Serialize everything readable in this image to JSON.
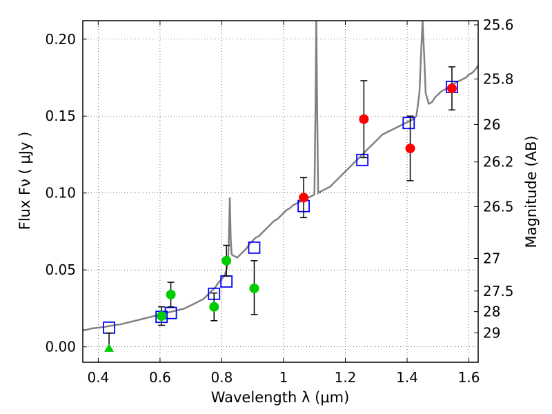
{
  "chart_data": {
    "type": "scatter",
    "xlabel": "Wavelength  λ (μm)",
    "ylabel": "Flux  Fν  ( μJy )",
    "ylabel_right": "Magnitude (AB)",
    "xlim": [
      0.35,
      1.63
    ],
    "ylim": [
      -0.01,
      0.212
    ],
    "grid": true,
    "x_ticks": [
      0.4,
      0.6,
      0.8,
      1.0,
      1.2,
      1.4,
      1.6
    ],
    "x_tick_labels": [
      "0.4",
      "0.6",
      "0.8",
      "1",
      "1.2",
      "1.4",
      "1.6"
    ],
    "y_ticks": [
      0.0,
      0.05,
      0.1,
      0.15,
      0.2
    ],
    "y_tick_labels": [
      "0.00",
      "0.05",
      "0.10",
      "0.15",
      "0.20"
    ],
    "right_ticks": [
      {
        "label": "25.6",
        "flux": 0.2093
      },
      {
        "label": "25.8",
        "flux": 0.1741
      },
      {
        "label": "26",
        "flux": 0.1445
      },
      {
        "label": "26.2",
        "flux": 0.1202
      },
      {
        "label": "26.5",
        "flux": 0.0912
      },
      {
        "label": "27",
        "flux": 0.0575
      },
      {
        "label": "27.5",
        "flux": 0.0363
      },
      {
        "label": "28",
        "flux": 0.0229
      },
      {
        "label": "29",
        "flux": 0.0091
      }
    ],
    "series": [
      {
        "color": "#808080",
        "kind": "line",
        "points": [
          [
            0.35,
            0.011
          ],
          [
            0.36,
            0.011
          ],
          [
            0.37,
            0.0115
          ],
          [
            0.38,
            0.012
          ],
          [
            0.39,
            0.0122
          ],
          [
            0.4,
            0.0125
          ],
          [
            0.41,
            0.0128
          ],
          [
            0.42,
            0.013
          ],
          [
            0.43,
            0.0133
          ],
          [
            0.44,
            0.0137
          ],
          [
            0.45,
            0.014
          ],
          [
            0.46,
            0.0143
          ],
          [
            0.47,
            0.0146
          ],
          [
            0.48,
            0.015
          ],
          [
            0.49,
            0.0155
          ],
          [
            0.5,
            0.016
          ],
          [
            0.51,
            0.0165
          ],
          [
            0.52,
            0.017
          ],
          [
            0.53,
            0.0175
          ],
          [
            0.54,
            0.018
          ],
          [
            0.55,
            0.0185
          ],
          [
            0.56,
            0.019
          ],
          [
            0.57,
            0.0195
          ],
          [
            0.58,
            0.02
          ],
          [
            0.59,
            0.0205
          ],
          [
            0.6,
            0.021
          ],
          [
            0.61,
            0.0215
          ],
          [
            0.62,
            0.022
          ],
          [
            0.63,
            0.0225
          ],
          [
            0.64,
            0.023
          ],
          [
            0.65,
            0.0235
          ],
          [
            0.66,
            0.024
          ],
          [
            0.67,
            0.0245
          ],
          [
            0.68,
            0.025
          ],
          [
            0.69,
            0.026
          ],
          [
            0.7,
            0.027
          ],
          [
            0.71,
            0.028
          ],
          [
            0.72,
            0.029
          ],
          [
            0.73,
            0.03
          ],
          [
            0.74,
            0.031
          ],
          [
            0.75,
            0.033
          ],
          [
            0.76,
            0.035
          ],
          [
            0.77,
            0.037
          ],
          [
            0.78,
            0.039
          ],
          [
            0.79,
            0.042
          ],
          [
            0.8,
            0.044
          ],
          [
            0.81,
            0.047
          ],
          [
            0.815,
            0.05
          ],
          [
            0.82,
            0.054
          ],
          [
            0.823,
            0.07
          ],
          [
            0.826,
            0.097
          ],
          [
            0.829,
            0.07
          ],
          [
            0.832,
            0.06
          ],
          [
            0.84,
            0.059
          ],
          [
            0.85,
            0.058
          ],
          [
            0.86,
            0.06
          ],
          [
            0.87,
            0.062
          ],
          [
            0.88,
            0.064
          ],
          [
            0.89,
            0.067
          ],
          [
            0.9,
            0.069
          ],
          [
            0.91,
            0.071
          ],
          [
            0.92,
            0.072
          ],
          [
            0.93,
            0.074
          ],
          [
            0.94,
            0.076
          ],
          [
            0.95,
            0.078
          ],
          [
            0.96,
            0.08
          ],
          [
            0.97,
            0.082
          ],
          [
            0.98,
            0.083
          ],
          [
            0.99,
            0.085
          ],
          [
            1.0,
            0.087
          ],
          [
            1.01,
            0.089
          ],
          [
            1.02,
            0.09
          ],
          [
            1.03,
            0.092
          ],
          [
            1.04,
            0.093
          ],
          [
            1.05,
            0.094
          ],
          [
            1.06,
            0.095
          ],
          [
            1.07,
            0.096
          ],
          [
            1.08,
            0.097
          ],
          [
            1.09,
            0.098
          ],
          [
            1.1,
            0.099
          ],
          [
            1.103,
            0.15
          ],
          [
            1.106,
            0.212
          ],
          [
            1.109,
            0.15
          ],
          [
            1.112,
            0.1
          ],
          [
            1.12,
            0.101
          ],
          [
            1.13,
            0.102
          ],
          [
            1.14,
            0.103
          ],
          [
            1.15,
            0.104
          ],
          [
            1.16,
            0.106
          ],
          [
            1.17,
            0.108
          ],
          [
            1.18,
            0.11
          ],
          [
            1.19,
            0.112
          ],
          [
            1.2,
            0.114
          ],
          [
            1.21,
            0.116
          ],
          [
            1.22,
            0.118
          ],
          [
            1.23,
            0.12
          ],
          [
            1.24,
            0.122
          ],
          [
            1.25,
            0.124
          ],
          [
            1.26,
            0.126
          ],
          [
            1.27,
            0.128
          ],
          [
            1.28,
            0.13
          ],
          [
            1.29,
            0.132
          ],
          [
            1.3,
            0.134
          ],
          [
            1.31,
            0.136
          ],
          [
            1.32,
            0.138
          ],
          [
            1.33,
            0.139
          ],
          [
            1.34,
            0.14
          ],
          [
            1.35,
            0.141
          ],
          [
            1.36,
            0.142
          ],
          [
            1.37,
            0.143
          ],
          [
            1.38,
            0.144
          ],
          [
            1.39,
            0.145
          ],
          [
            1.4,
            0.146
          ],
          [
            1.41,
            0.147
          ],
          [
            1.42,
            0.148
          ],
          [
            1.43,
            0.15
          ],
          [
            1.44,
            0.165
          ],
          [
            1.445,
            0.19
          ],
          [
            1.45,
            0.212
          ],
          [
            1.455,
            0.19
          ],
          [
            1.46,
            0.165
          ],
          [
            1.47,
            0.158
          ],
          [
            1.48,
            0.159
          ],
          [
            1.49,
            0.162
          ],
          [
            1.5,
            0.164
          ],
          [
            1.51,
            0.166
          ],
          [
            1.52,
            0.167
          ],
          [
            1.53,
            0.168
          ],
          [
            1.54,
            0.17
          ],
          [
            1.55,
            0.171
          ],
          [
            1.56,
            0.172
          ],
          [
            1.57,
            0.173
          ],
          [
            1.58,
            0.174
          ],
          [
            1.59,
            0.175
          ],
          [
            1.6,
            0.177
          ],
          [
            1.61,
            0.178
          ],
          [
            1.62,
            0.18
          ],
          [
            1.63,
            0.183
          ]
        ]
      },
      {
        "color": "#0000ff",
        "marker": "open-square",
        "points": [
          [
            0.435,
            0.0125
          ],
          [
            0.605,
            0.0195
          ],
          [
            0.635,
            0.022
          ],
          [
            0.775,
            0.0345
          ],
          [
            0.815,
            0.0425
          ],
          [
            0.905,
            0.0645
          ],
          [
            1.065,
            0.0915
          ],
          [
            1.255,
            0.1215
          ],
          [
            1.405,
            0.1455
          ],
          [
            1.545,
            0.169
          ]
        ]
      },
      {
        "color": "#00cc00",
        "marker": "circle",
        "points": [
          [
            0.605,
            0.02
          ],
          [
            0.635,
            0.034
          ],
          [
            0.775,
            0.026
          ],
          [
            0.815,
            0.056
          ],
          [
            0.905,
            0.038
          ]
        ],
        "errors": [
          [
            0.006,
            0.006
          ],
          [
            0.008,
            0.008
          ],
          [
            0.009,
            0.009
          ],
          [
            0.01,
            0.01
          ],
          [
            0.017,
            0.018
          ]
        ]
      },
      {
        "color": "#00cc00",
        "marker": "triangle",
        "points": [
          [
            0.435,
            -0.001
          ]
        ],
        "errors": [
          [
            0.0,
            0.01
          ]
        ]
      },
      {
        "color": "#ff0000",
        "marker": "circle",
        "points": [
          [
            1.065,
            0.097
          ],
          [
            1.26,
            0.148
          ],
          [
            1.41,
            0.129
          ],
          [
            1.545,
            0.168
          ]
        ],
        "errors": [
          [
            0.013,
            0.013
          ],
          [
            0.025,
            0.025
          ],
          [
            0.021,
            0.021
          ],
          [
            0.014,
            0.014
          ]
        ]
      }
    ]
  }
}
